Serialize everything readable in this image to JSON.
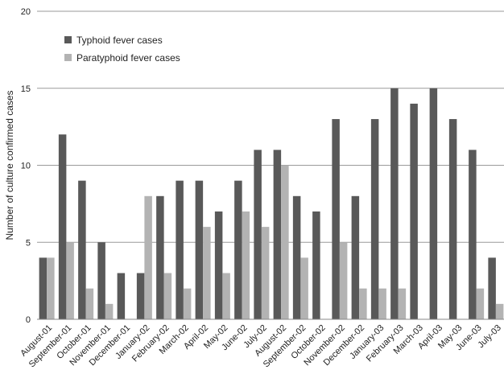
{
  "chart_data": {
    "type": "bar",
    "title": "",
    "xlabel": "",
    "ylabel": "Number of culture confirmed cases",
    "ylim": [
      0,
      20
    ],
    "yticks": [
      0,
      5,
      10,
      15,
      20
    ],
    "grid": true,
    "legend_position": "top-left",
    "categories": [
      "August-01",
      "September-01",
      "October-01",
      "November-01",
      "December-01",
      "January-02",
      "February-02",
      "March-02",
      "April-02",
      "May-02",
      "June-02",
      "July-02",
      "August-02",
      "September-02",
      "October-02",
      "November-02",
      "December-02",
      "January-03",
      "February-03",
      "March-03",
      "April-03",
      "May-03",
      "June-03",
      "July-03"
    ],
    "series": [
      {
        "name": "Typhoid fever cases",
        "color": "#595959",
        "values": [
          4,
          12,
          9,
          5,
          3,
          3,
          8,
          9,
          9,
          7,
          9,
          11,
          11,
          8,
          7,
          13,
          8,
          13,
          15,
          14,
          15,
          13,
          11,
          4
        ]
      },
      {
        "name": "Paratyphoid fever cases",
        "color": "#b3b3b3",
        "values": [
          4,
          5,
          2,
          1,
          0,
          8,
          3,
          2,
          6,
          3,
          7,
          6,
          10,
          4,
          0,
          5,
          2,
          2,
          2,
          0,
          0,
          0,
          2,
          1
        ]
      }
    ]
  }
}
